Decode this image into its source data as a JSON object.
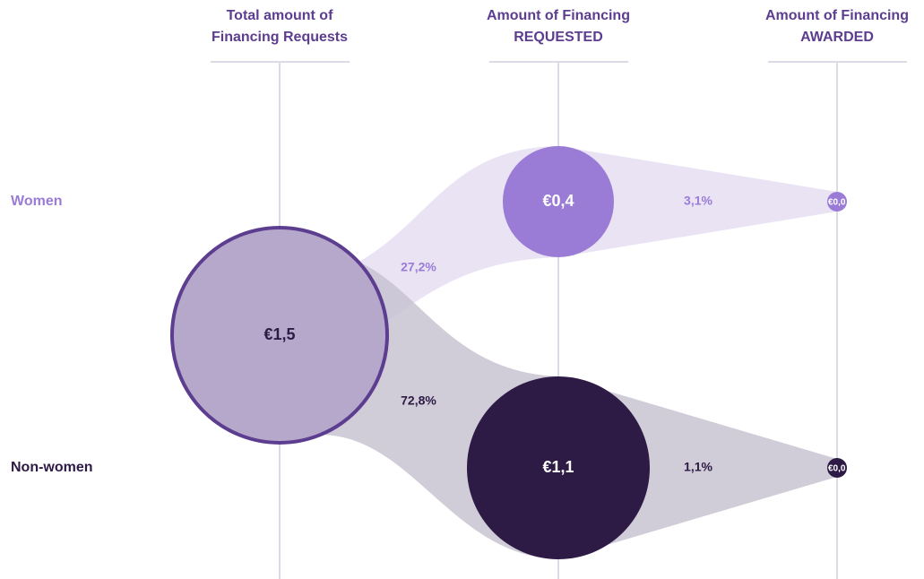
{
  "columns": [
    {
      "lines": [
        "Total amount of",
        "Financing Requests"
      ]
    },
    {
      "lines": [
        "Amount of Financing",
        "REQUESTED"
      ]
    },
    {
      "lines": [
        "Amount of Financing",
        "AWARDED"
      ]
    }
  ],
  "rows": [
    "Women",
    "Non-women"
  ],
  "nodes": {
    "total": "€1,5",
    "women_requested": "€0,4",
    "nonwomen_requested": "€1,1",
    "women_awarded": "€0,0",
    "nonwomen_awarded": "€0,0"
  },
  "flows": {
    "women_share": "27,2%",
    "nonwomen_share": "72,8%",
    "women_award_rate": "3,1%",
    "nonwomen_award_rate": "1,1%"
  }
}
